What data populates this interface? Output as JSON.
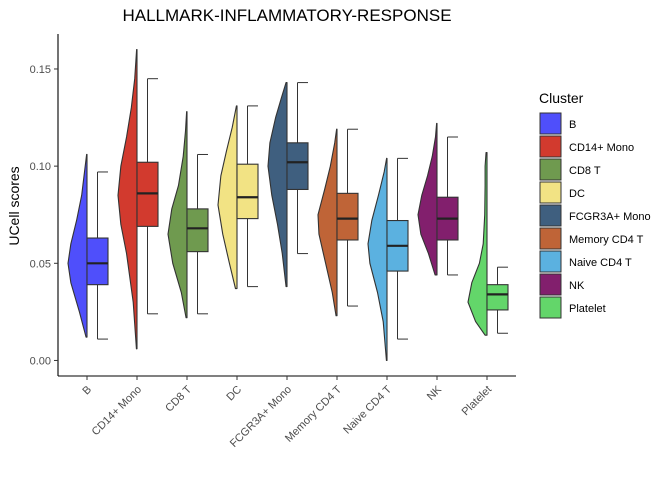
{
  "chart_data": {
    "type": "split-violin-boxplot",
    "title": "HALLMARK-INFLAMMATORY-RESPONSE",
    "xlabel": "",
    "ylabel": "UCell scores",
    "ylim": [
      -0.008,
      0.168
    ],
    "yticks": [
      0.0,
      0.05,
      0.1,
      0.15
    ],
    "ytick_labels": [
      "0.00",
      "0.05",
      "0.10",
      "0.15"
    ],
    "grid": false,
    "legend": {
      "title": "Cluster",
      "position": "right"
    },
    "categories": [
      "B",
      "CD14+ Mono",
      "CD8 T",
      "DC",
      "FCGR3A+ Mono",
      "Memory CD4 T",
      "Naive CD4 T",
      "NK",
      "Platelet"
    ],
    "colors": [
      "#4f4ffb",
      "#d23a2e",
      "#6f9a4f",
      "#f2e384",
      "#3f5f7f",
      "#bf6437",
      "#5bb1e0",
      "#821f6d",
      "#63d66a"
    ],
    "boxes": [
      {
        "min": 0.011,
        "q1": 0.039,
        "median": 0.05,
        "q3": 0.063,
        "max": 0.097
      },
      {
        "min": 0.024,
        "q1": 0.069,
        "median": 0.086,
        "q3": 0.102,
        "max": 0.145
      },
      {
        "min": 0.024,
        "q1": 0.056,
        "median": 0.068,
        "q3": 0.078,
        "max": 0.106
      },
      {
        "min": 0.038,
        "q1": 0.073,
        "median": 0.084,
        "q3": 0.101,
        "max": 0.131
      },
      {
        "min": 0.055,
        "q1": 0.088,
        "median": 0.102,
        "q3": 0.112,
        "max": 0.143
      },
      {
        "min": 0.028,
        "q1": 0.062,
        "median": 0.073,
        "q3": 0.086,
        "max": 0.119
      },
      {
        "min": 0.011,
        "q1": 0.046,
        "median": 0.059,
        "q3": 0.072,
        "max": 0.104
      },
      {
        "min": 0.044,
        "q1": 0.062,
        "median": 0.073,
        "q3": 0.084,
        "max": 0.115
      },
      {
        "min": 0.014,
        "q1": 0.026,
        "median": 0.034,
        "q3": 0.039,
        "max": 0.048
      }
    ],
    "violins": [
      {
        "min": 0.012,
        "max": 0.106,
        "density": [
          [
            0.012,
            0.05
          ],
          [
            0.025,
            0.4
          ],
          [
            0.04,
            0.85
          ],
          [
            0.05,
            1.0
          ],
          [
            0.06,
            0.85
          ],
          [
            0.072,
            0.55
          ],
          [
            0.085,
            0.28
          ],
          [
            0.098,
            0.12
          ],
          [
            0.106,
            0.02
          ]
        ]
      },
      {
        "min": 0.006,
        "max": 0.16,
        "density": [
          [
            0.006,
            0.03
          ],
          [
            0.03,
            0.2
          ],
          [
            0.055,
            0.55
          ],
          [
            0.07,
            0.85
          ],
          [
            0.085,
            1.0
          ],
          [
            0.1,
            0.85
          ],
          [
            0.115,
            0.55
          ],
          [
            0.13,
            0.3
          ],
          [
            0.145,
            0.12
          ],
          [
            0.16,
            0.02
          ]
        ]
      },
      {
        "min": 0.022,
        "max": 0.128,
        "density": [
          [
            0.022,
            0.05
          ],
          [
            0.035,
            0.3
          ],
          [
            0.05,
            0.75
          ],
          [
            0.065,
            1.0
          ],
          [
            0.078,
            0.8
          ],
          [
            0.09,
            0.45
          ],
          [
            0.105,
            0.2
          ],
          [
            0.118,
            0.08
          ],
          [
            0.128,
            0.02
          ]
        ]
      },
      {
        "min": 0.037,
        "max": 0.131,
        "density": [
          [
            0.037,
            0.08
          ],
          [
            0.05,
            0.4
          ],
          [
            0.065,
            0.75
          ],
          [
            0.08,
            1.0
          ],
          [
            0.095,
            0.85
          ],
          [
            0.108,
            0.55
          ],
          [
            0.12,
            0.25
          ],
          [
            0.131,
            0.03
          ]
        ]
      },
      {
        "min": 0.038,
        "max": 0.143,
        "density": [
          [
            0.038,
            0.05
          ],
          [
            0.055,
            0.25
          ],
          [
            0.07,
            0.5
          ],
          [
            0.085,
            0.8
          ],
          [
            0.1,
            1.0
          ],
          [
            0.112,
            0.9
          ],
          [
            0.125,
            0.6
          ],
          [
            0.135,
            0.3
          ],
          [
            0.143,
            0.05
          ]
        ]
      },
      {
        "min": 0.023,
        "max": 0.119,
        "density": [
          [
            0.023,
            0.05
          ],
          [
            0.035,
            0.25
          ],
          [
            0.05,
            0.6
          ],
          [
            0.065,
            0.95
          ],
          [
            0.075,
            1.0
          ],
          [
            0.088,
            0.65
          ],
          [
            0.1,
            0.35
          ],
          [
            0.112,
            0.12
          ],
          [
            0.119,
            0.02
          ]
        ]
      },
      {
        "min": 0.0,
        "max": 0.104,
        "density": [
          [
            0.0,
            0.03
          ],
          [
            0.02,
            0.2
          ],
          [
            0.035,
            0.5
          ],
          [
            0.05,
            0.9
          ],
          [
            0.06,
            1.0
          ],
          [
            0.072,
            0.8
          ],
          [
            0.085,
            0.45
          ],
          [
            0.097,
            0.15
          ],
          [
            0.104,
            0.02
          ]
        ]
      },
      {
        "min": 0.044,
        "max": 0.122,
        "density": [
          [
            0.044,
            0.1
          ],
          [
            0.055,
            0.45
          ],
          [
            0.065,
            0.85
          ],
          [
            0.075,
            1.0
          ],
          [
            0.085,
            0.8
          ],
          [
            0.095,
            0.5
          ],
          [
            0.105,
            0.25
          ],
          [
            0.115,
            0.08
          ],
          [
            0.122,
            0.02
          ]
        ]
      },
      {
        "min": 0.013,
        "max": 0.107,
        "density": [
          [
            0.013,
            0.1
          ],
          [
            0.02,
            0.6
          ],
          [
            0.03,
            1.0
          ],
          [
            0.04,
            0.8
          ],
          [
            0.05,
            0.4
          ],
          [
            0.06,
            0.2
          ],
          [
            0.075,
            0.12
          ],
          [
            0.09,
            0.1
          ],
          [
            0.1,
            0.1
          ],
          [
            0.107,
            0.05
          ]
        ]
      }
    ]
  }
}
